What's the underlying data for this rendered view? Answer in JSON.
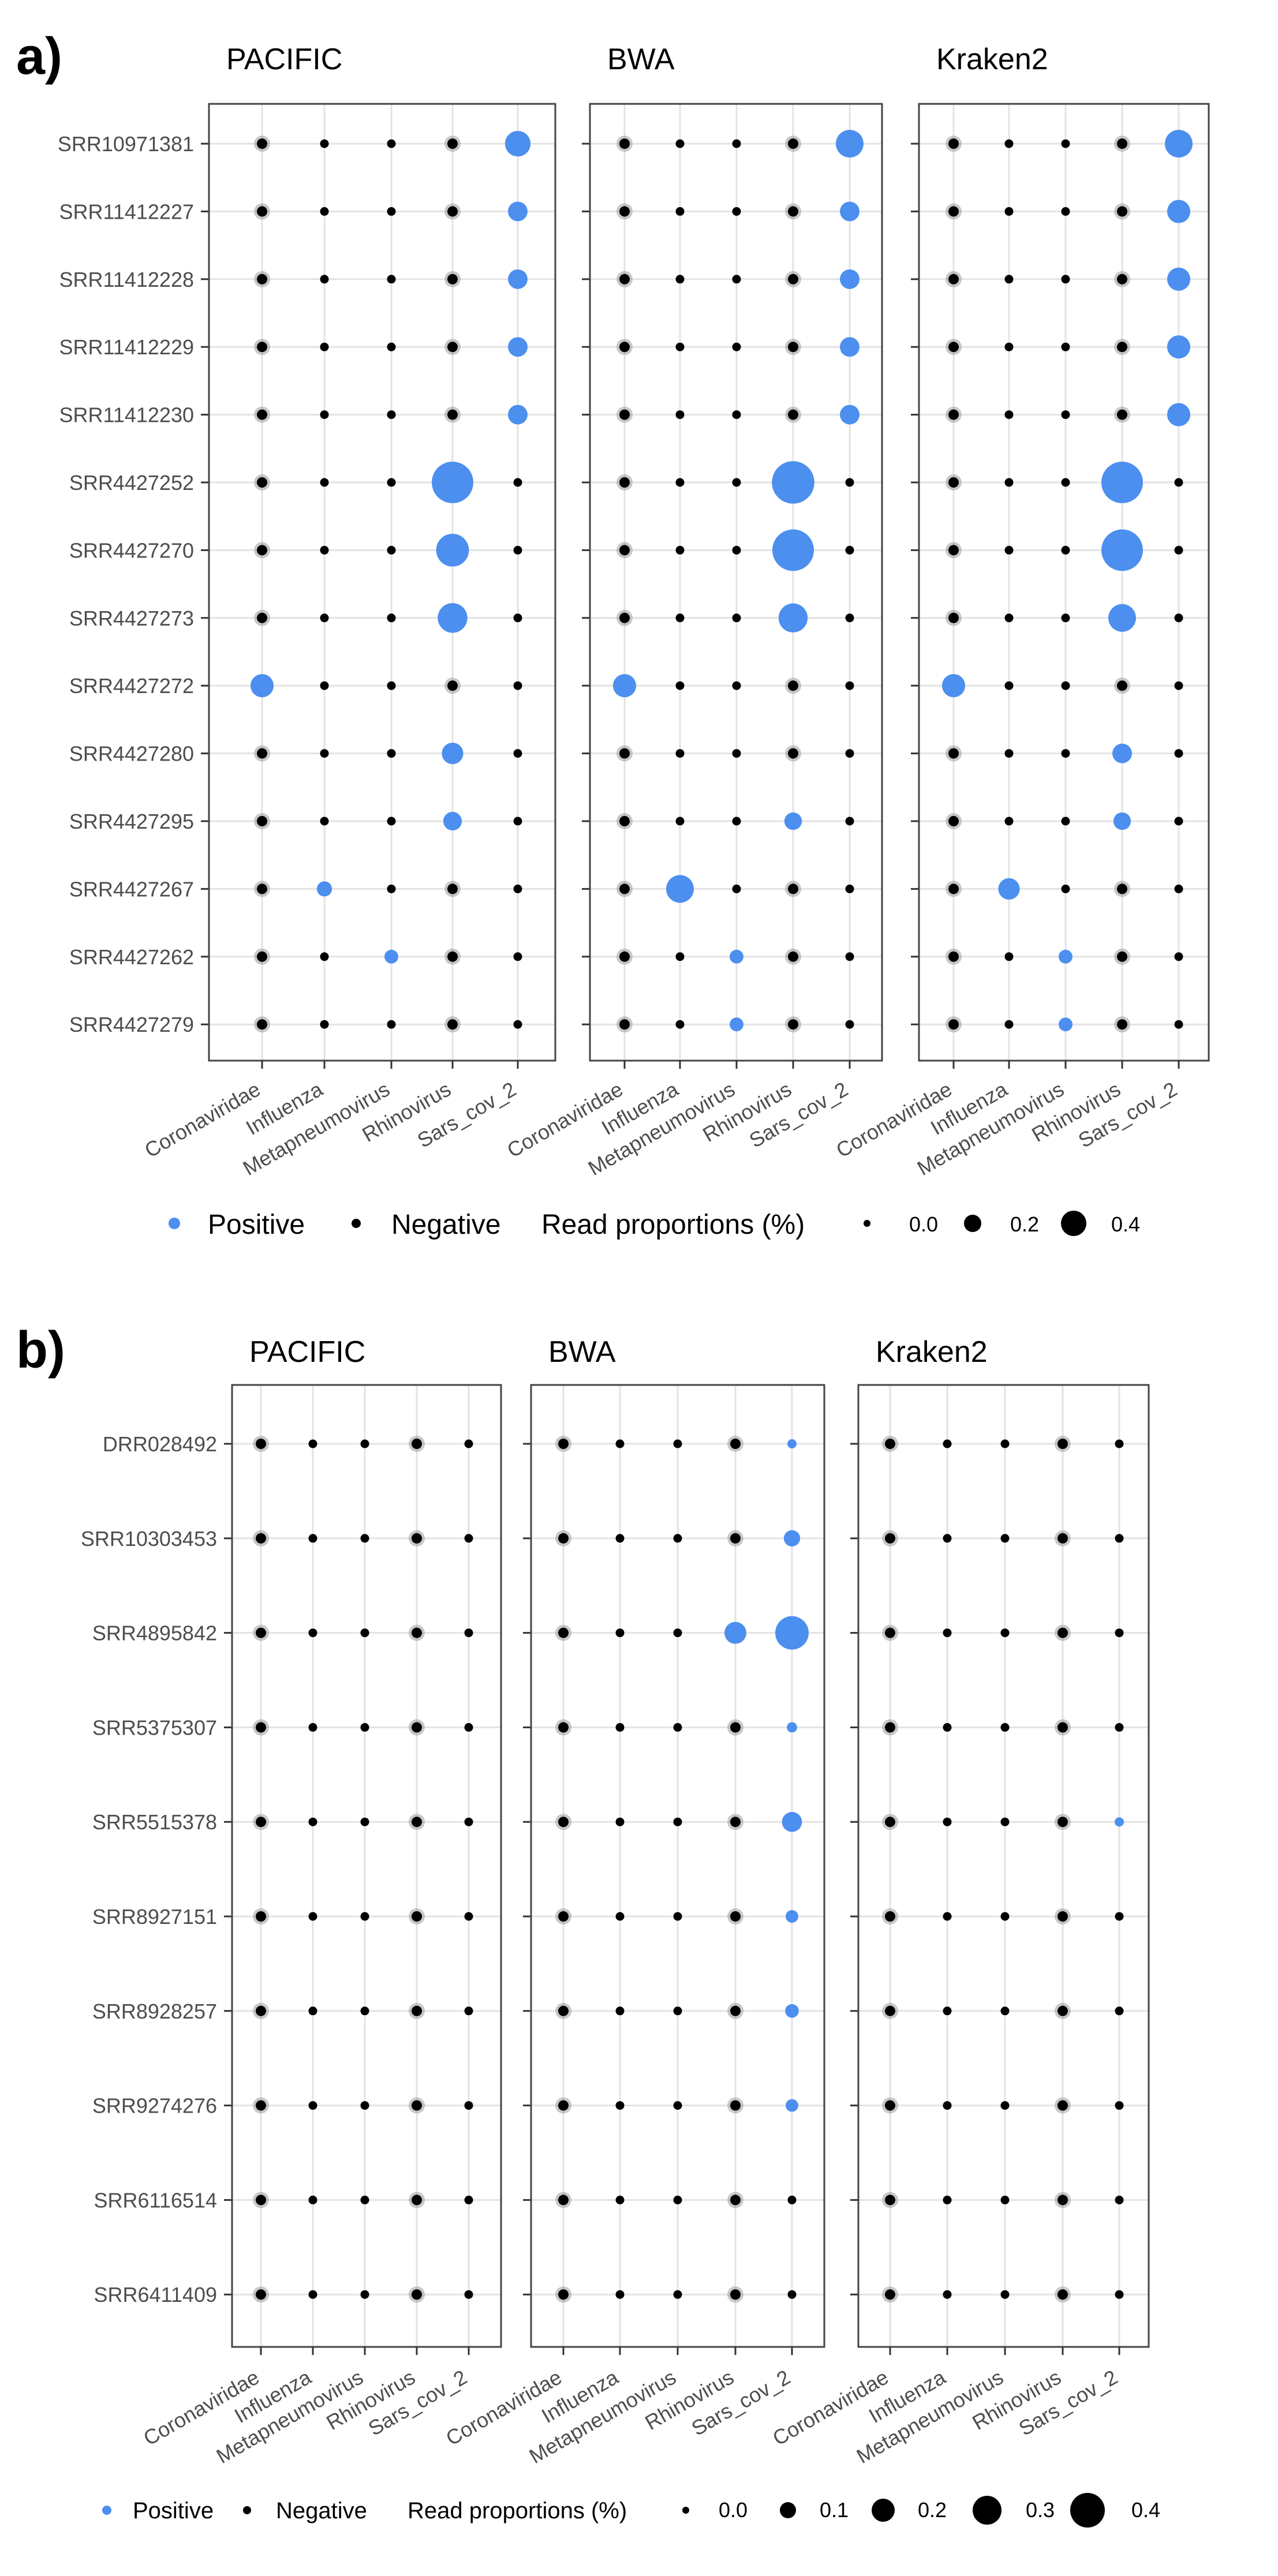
{
  "chart_data": [
    {
      "panel_label": "a)",
      "type": "scatter",
      "facets": [
        "PACIFIC",
        "BWA",
        "Kraken2"
      ],
      "categories": [
        "Coronaviridae",
        "Influenza",
        "Metapneumovirus",
        "Rhinovirus",
        "Sars_cov_2"
      ],
      "samples": [
        "SRR10971381",
        "SRR11412227",
        "SRR11412228",
        "SRR11412229",
        "SRR11412230",
        "SRR4427252",
        "SRR4427270",
        "SRR4427273",
        "SRR4427272",
        "SRR4427280",
        "SRR4427295",
        "SRR4427267",
        "SRR4427262",
        "SRR4427279"
      ],
      "positives": [
        {
          "facet": "PACIFIC",
          "sample": "SRR10971381",
          "category": "Sars_cov_2",
          "value": 0.17
        },
        {
          "facet": "PACIFIC",
          "sample": "SRR11412227",
          "category": "Sars_cov_2",
          "value": 0.1
        },
        {
          "facet": "PACIFIC",
          "sample": "SRR11412228",
          "category": "Sars_cov_2",
          "value": 0.1
        },
        {
          "facet": "PACIFIC",
          "sample": "SRR11412229",
          "category": "Sars_cov_2",
          "value": 0.1
        },
        {
          "facet": "PACIFIC",
          "sample": "SRR11412230",
          "category": "Sars_cov_2",
          "value": 0.1
        },
        {
          "facet": "PACIFIC",
          "sample": "SRR4427252",
          "category": "Rhinovirus",
          "value": 0.45
        },
        {
          "facet": "PACIFIC",
          "sample": "SRR4427270",
          "category": "Rhinovirus",
          "value": 0.28
        },
        {
          "facet": "PACIFIC",
          "sample": "SRR4427273",
          "category": "Rhinovirus",
          "value": 0.23
        },
        {
          "facet": "PACIFIC",
          "sample": "SRR4427272",
          "category": "Coronaviridae",
          "value": 0.14
        },
        {
          "facet": "PACIFIC",
          "sample": "SRR4427280",
          "category": "Rhinovirus",
          "value": 0.12
        },
        {
          "facet": "PACIFIC",
          "sample": "SRR4427295",
          "category": "Rhinovirus",
          "value": 0.09
        },
        {
          "facet": "PACIFIC",
          "sample": "SRR4427267",
          "category": "Influenza",
          "value": 0.06
        },
        {
          "facet": "PACIFIC",
          "sample": "SRR4427262",
          "category": "Metapneumovirus",
          "value": 0.05
        },
        {
          "facet": "BWA",
          "sample": "SRR10971381",
          "category": "Sars_cov_2",
          "value": 0.2
        },
        {
          "facet": "BWA",
          "sample": "SRR11412227",
          "category": "Sars_cov_2",
          "value": 0.1
        },
        {
          "facet": "BWA",
          "sample": "SRR11412228",
          "category": "Sars_cov_2",
          "value": 0.1
        },
        {
          "facet": "BWA",
          "sample": "SRR11412229",
          "category": "Sars_cov_2",
          "value": 0.1
        },
        {
          "facet": "BWA",
          "sample": "SRR11412230",
          "category": "Sars_cov_2",
          "value": 0.1
        },
        {
          "facet": "BWA",
          "sample": "SRR4427252",
          "category": "Rhinovirus",
          "value": 0.47
        },
        {
          "facet": "BWA",
          "sample": "SRR4427270",
          "category": "Rhinovirus",
          "value": 0.45
        },
        {
          "facet": "BWA",
          "sample": "SRR4427273",
          "category": "Rhinovirus",
          "value": 0.22
        },
        {
          "facet": "BWA",
          "sample": "SRR4427272",
          "category": "Coronaviridae",
          "value": 0.14
        },
        {
          "facet": "BWA",
          "sample": "SRR4427295",
          "category": "Rhinovirus",
          "value": 0.08
        },
        {
          "facet": "BWA",
          "sample": "SRR4427267",
          "category": "Influenza",
          "value": 0.2
        },
        {
          "facet": "BWA",
          "sample": "SRR4427262",
          "category": "Metapneumovirus",
          "value": 0.05
        },
        {
          "facet": "BWA",
          "sample": "SRR4427279",
          "category": "Metapneumovirus",
          "value": 0.05
        },
        {
          "facet": "Kraken2",
          "sample": "SRR10971381",
          "category": "Sars_cov_2",
          "value": 0.2
        },
        {
          "facet": "Kraken2",
          "sample": "SRR11412227",
          "category": "Sars_cov_2",
          "value": 0.14
        },
        {
          "facet": "Kraken2",
          "sample": "SRR11412228",
          "category": "Sars_cov_2",
          "value": 0.14
        },
        {
          "facet": "Kraken2",
          "sample": "SRR11412229",
          "category": "Sars_cov_2",
          "value": 0.14
        },
        {
          "facet": "Kraken2",
          "sample": "SRR11412230",
          "category": "Sars_cov_2",
          "value": 0.14
        },
        {
          "facet": "Kraken2",
          "sample": "SRR4427252",
          "category": "Rhinovirus",
          "value": 0.45
        },
        {
          "facet": "Kraken2",
          "sample": "SRR4427270",
          "category": "Rhinovirus",
          "value": 0.45
        },
        {
          "facet": "Kraken2",
          "sample": "SRR4427273",
          "category": "Rhinovirus",
          "value": 0.2
        },
        {
          "facet": "Kraken2",
          "sample": "SRR4427272",
          "category": "Coronaviridae",
          "value": 0.14
        },
        {
          "facet": "Kraken2",
          "sample": "SRR4427280",
          "category": "Rhinovirus",
          "value": 0.1
        },
        {
          "facet": "Kraken2",
          "sample": "SRR4427295",
          "category": "Rhinovirus",
          "value": 0.08
        },
        {
          "facet": "Kraken2",
          "sample": "SRR4427267",
          "category": "Influenza",
          "value": 0.12
        },
        {
          "facet": "Kraken2",
          "sample": "SRR4427262",
          "category": "Metapneumovirus",
          "value": 0.05
        },
        {
          "facet": "Kraken2",
          "sample": "SRR4427279",
          "category": "Metapneumovirus",
          "value": 0.05
        }
      ],
      "legend": {
        "positive_label": "Positive",
        "negative_label": "Negative",
        "size_title": "Read proportions (%)",
        "size_breaks": [
          0.0,
          0.2,
          0.4
        ],
        "size_labels": [
          "0.0",
          "0.2",
          "0.4"
        ]
      },
      "colors": {
        "positive": "#4c8fef",
        "negative": "#000000",
        "halo": "#9a9a9a",
        "grid": "#e3e3e3",
        "border": "#444444"
      },
      "legend_position": "bottom",
      "grid": true
    },
    {
      "panel_label": "b)",
      "type": "scatter",
      "facets": [
        "PACIFIC",
        "BWA",
        "Kraken2"
      ],
      "categories": [
        "Coronaviridae",
        "Influenza",
        "Metapneumovirus",
        "Rhinovirus",
        "Sars_cov_2"
      ],
      "samples": [
        "DRR028492",
        "SRR10303453",
        "SRR4895842",
        "SRR5375307",
        "SRR5515378",
        "SRR8927151",
        "SRR8928257",
        "SRR9274276",
        "SRR6116514",
        "SRR6411409"
      ],
      "positives": [
        {
          "facet": "BWA",
          "sample": "DRR028492",
          "category": "Sars_cov_2",
          "value": 0.03
        },
        {
          "facet": "BWA",
          "sample": "SRR10303453",
          "category": "Sars_cov_2",
          "value": 0.1
        },
        {
          "facet": "BWA",
          "sample": "SRR4895842",
          "category": "Rhinovirus",
          "value": 0.18
        },
        {
          "facet": "BWA",
          "sample": "SRR4895842",
          "category": "Sars_cov_2",
          "value": 0.42
        },
        {
          "facet": "BWA",
          "sample": "SRR5375307",
          "category": "Sars_cov_2",
          "value": 0.04
        },
        {
          "facet": "BWA",
          "sample": "SRR5515378",
          "category": "Sars_cov_2",
          "value": 0.15
        },
        {
          "facet": "BWA",
          "sample": "SRR8927151",
          "category": "Sars_cov_2",
          "value": 0.06
        },
        {
          "facet": "BWA",
          "sample": "SRR8928257",
          "category": "Sars_cov_2",
          "value": 0.07
        },
        {
          "facet": "BWA",
          "sample": "SRR9274276",
          "category": "Sars_cov_2",
          "value": 0.06
        },
        {
          "facet": "Kraken2",
          "sample": "SRR5515378",
          "category": "Sars_cov_2",
          "value": 0.02
        }
      ],
      "legend": {
        "positive_label": "Positive",
        "negative_label": "Negative",
        "size_title": "Read proportions (%)",
        "size_breaks": [
          0.0,
          0.1,
          0.2,
          0.3,
          0.4
        ],
        "size_labels": [
          "0.0",
          "0.1",
          "0.2",
          "0.3",
          "0.4"
        ]
      },
      "colors": {
        "positive": "#4c8fef",
        "negative": "#000000",
        "halo": "#9a9a9a",
        "grid": "#e3e3e3",
        "border": "#444444"
      },
      "legend_position": "bottom",
      "grid": true
    }
  ]
}
